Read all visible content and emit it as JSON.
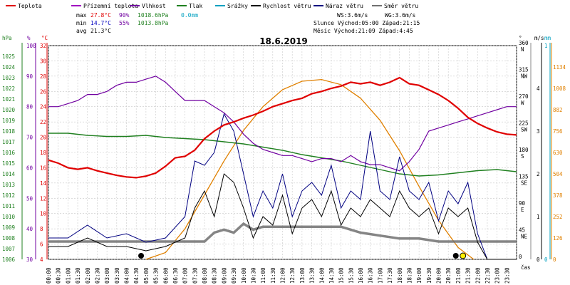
{
  "colors": {
    "temperature": "#e00000",
    "feels_like": "#a000c0",
    "humidity": "#7000a0",
    "pressure": "#208020",
    "rain": "#00a0c0",
    "wind_speed": "#000000",
    "wind_gust": "#000080",
    "wind_dir": "#707070",
    "sun": "#e08000"
  },
  "legend": [
    {
      "key": "temperature",
      "label": "Teplota"
    },
    {
      "key": "feels_like",
      "label": "Přízemní teplota"
    },
    {
      "key": "humidity",
      "label": "Vlhkost"
    },
    {
      "key": "pressure",
      "label": "Tlak"
    },
    {
      "key": "rain",
      "label": "Srážky"
    },
    {
      "key": "wind_speed",
      "label": "Rychlost větru"
    },
    {
      "key": "wind_gust",
      "label": "Náraz větru"
    },
    {
      "key": "wind_dir",
      "label": "Směr větru"
    }
  ],
  "stats": {
    "max_label": "max",
    "max_temp": "27.8°C",
    "max_hum": "90%",
    "max_press": "1018.6hPa",
    "max_rain": "0.0mm",
    "min_label": "min",
    "min_temp": "14.7°C",
    "min_hum": "55%",
    "min_press": "1013.8hPa",
    "avg_label": "avg",
    "avg_temp": "21.3°C",
    "ws": "WS:3.6m/s",
    "wg": "WG:3.6m/s",
    "sun_line": "Slunce Východ:05:00  Západ:21:15",
    "moon_line": "Měsíc  Východ:21:09  Západ:4:45"
  },
  "chart_data": {
    "type": "line",
    "title": "18.6.2019",
    "x_axis_label": "čas",
    "x_ticks": [
      "00:00",
      "00:30",
      "01:00",
      "01:30",
      "02:00",
      "02:30",
      "03:00",
      "03:30",
      "04:00",
      "04:30",
      "05:00",
      "05:30",
      "06:00",
      "06:30",
      "07:00",
      "07:30",
      "08:00",
      "08:30",
      "09:00",
      "09:30",
      "10:00",
      "10:30",
      "11:00",
      "11:30",
      "12:00",
      "12:30",
      "13:00",
      "13:30",
      "14:00",
      "14:30",
      "15:00",
      "15:30",
      "16:00",
      "16:30",
      "17:00",
      "17:30",
      "18:00",
      "18:30",
      "19:00",
      "19:30",
      "20:00",
      "20:30",
      "21:00",
      "21:30",
      "22:00",
      "22:30",
      "23:00",
      "23:30"
    ],
    "axes": {
      "hpa": {
        "label": "hPa",
        "range": [
          1006,
          1026
        ],
        "ticks": [
          1006,
          1007,
          1008,
          1009,
          1010,
          1011,
          1012,
          1013,
          1014,
          1015,
          1016,
          1017,
          1018,
          1019,
          1020,
          1021,
          1022,
          1023,
          1024,
          1025
        ]
      },
      "humidity": {
        "label": "%",
        "range": [
          30,
          100
        ],
        "ticks": [
          30,
          40,
          50,
          60,
          70,
          80,
          90,
          100
        ]
      },
      "temp": {
        "label": "°C",
        "range": [
          4,
          32
        ],
        "ticks": [
          4,
          6,
          8,
          10,
          12,
          14,
          16,
          18,
          20,
          22,
          24,
          26,
          28,
          30,
          32
        ]
      },
      "dir": {
        "label": "°",
        "ticks": [
          {
            "v": 0,
            "l": "0"
          },
          {
            "v": 45,
            "l": "45 NE"
          },
          {
            "v": 90,
            "l": "90 E"
          },
          {
            "v": 135,
            "l": "135 SE"
          },
          {
            "v": 180,
            "l": "180 S"
          },
          {
            "v": 225,
            "l": "225 SW"
          },
          {
            "v": 270,
            "l": "270 W"
          },
          {
            "v": 315,
            "l": "315 NW"
          },
          {
            "v": 360,
            "l": "360 N"
          }
        ]
      },
      "wind": {
        "label": "m/s",
        "range": [
          0,
          5
        ],
        "ticks": [
          0,
          1,
          2,
          3,
          4
        ]
      },
      "rain": {
        "label": "mm",
        "range": [
          0,
          1
        ],
        "ticks": [
          0,
          1
        ]
      },
      "solar": {
        "range": [
          0,
          1260
        ],
        "ticks": [
          0,
          126,
          252,
          378,
          504,
          630,
          756,
          882,
          1008,
          1134
        ]
      }
    },
    "series": {
      "temperature": [
        [
          0,
          17.0
        ],
        [
          0.5,
          16.6
        ],
        [
          1,
          16.0
        ],
        [
          1.5,
          15.8
        ],
        [
          2,
          16.0
        ],
        [
          2.5,
          15.6
        ],
        [
          3,
          15.3
        ],
        [
          3.5,
          15.0
        ],
        [
          4,
          14.8
        ],
        [
          4.5,
          14.7
        ],
        [
          5,
          14.9
        ],
        [
          5.5,
          15.3
        ],
        [
          6,
          16.2
        ],
        [
          6.5,
          17.3
        ],
        [
          7,
          17.5
        ],
        [
          7.5,
          18.3
        ],
        [
          8,
          19.8
        ],
        [
          8.5,
          20.8
        ],
        [
          9,
          21.6
        ],
        [
          9.5,
          22.0
        ],
        [
          10,
          22.5
        ],
        [
          10.5,
          22.9
        ],
        [
          11,
          23.4
        ],
        [
          11.5,
          24.0
        ],
        [
          12,
          24.4
        ],
        [
          12.5,
          24.8
        ],
        [
          13,
          25.1
        ],
        [
          13.5,
          25.7
        ],
        [
          14,
          26.0
        ],
        [
          14.5,
          26.4
        ],
        [
          15,
          26.7
        ],
        [
          15.5,
          27.2
        ],
        [
          16,
          27.0
        ],
        [
          16.5,
          27.2
        ],
        [
          17,
          26.8
        ],
        [
          17.5,
          27.2
        ],
        [
          18,
          27.8
        ],
        [
          18.5,
          27.0
        ],
        [
          19,
          26.8
        ],
        [
          19.5,
          26.2
        ],
        [
          20,
          25.6
        ],
        [
          20.5,
          24.8
        ],
        [
          21,
          23.8
        ],
        [
          21.5,
          22.6
        ],
        [
          22,
          21.8
        ],
        [
          22.5,
          21.2
        ],
        [
          23,
          20.7
        ],
        [
          23.5,
          20.4
        ],
        [
          24,
          20.3
        ]
      ],
      "humidity": [
        [
          0,
          80
        ],
        [
          0.5,
          80
        ],
        [
          1,
          81
        ],
        [
          1.5,
          82
        ],
        [
          2,
          84
        ],
        [
          2.5,
          84
        ],
        [
          3,
          85
        ],
        [
          3.5,
          87
        ],
        [
          4,
          88
        ],
        [
          4.5,
          88
        ],
        [
          5,
          89
        ],
        [
          5.5,
          90
        ],
        [
          6,
          88
        ],
        [
          6.5,
          85
        ],
        [
          7,
          82
        ],
        [
          7.5,
          82
        ],
        [
          8,
          82
        ],
        [
          8.5,
          80
        ],
        [
          9,
          78
        ],
        [
          9.5,
          75
        ],
        [
          10,
          71
        ],
        [
          10.5,
          68
        ],
        [
          11,
          66
        ],
        [
          11.5,
          65
        ],
        [
          12,
          64
        ],
        [
          12.5,
          64
        ],
        [
          13,
          63
        ],
        [
          13.5,
          62
        ],
        [
          14,
          63
        ],
        [
          14.5,
          63
        ],
        [
          15,
          62
        ],
        [
          15.5,
          64
        ],
        [
          16,
          62
        ],
        [
          16.5,
          61
        ],
        [
          17,
          61
        ],
        [
          17.5,
          60
        ],
        [
          18,
          59
        ],
        [
          18.5,
          62
        ],
        [
          19,
          66
        ],
        [
          19.5,
          72
        ],
        [
          20,
          73
        ],
        [
          20.5,
          74
        ],
        [
          21,
          75
        ],
        [
          21.5,
          76
        ],
        [
          22,
          77
        ],
        [
          22.5,
          78
        ],
        [
          23,
          79
        ],
        [
          23.5,
          80
        ],
        [
          24,
          80
        ]
      ],
      "pressure": [
        [
          0,
          1017.8
        ],
        [
          1,
          1017.8
        ],
        [
          2,
          1017.6
        ],
        [
          3,
          1017.5
        ],
        [
          4,
          1017.5
        ],
        [
          5,
          1017.6
        ],
        [
          6,
          1017.4
        ],
        [
          7,
          1017.3
        ],
        [
          8,
          1017.2
        ],
        [
          9,
          1017.0
        ],
        [
          10,
          1016.8
        ],
        [
          11,
          1016.5
        ],
        [
          12,
          1016.2
        ],
        [
          13,
          1015.8
        ],
        [
          14,
          1015.5
        ],
        [
          15,
          1015.2
        ],
        [
          16,
          1014.8
        ],
        [
          17,
          1014.4
        ],
        [
          18,
          1014.0
        ],
        [
          19,
          1013.8
        ],
        [
          20,
          1013.9
        ],
        [
          21,
          1014.1
        ],
        [
          22,
          1014.3
        ],
        [
          23,
          1014.4
        ],
        [
          24,
          1014.2
        ]
      ],
      "solar": [
        [
          5.0,
          0
        ],
        [
          6,
          40
        ],
        [
          7,
          180
        ],
        [
          8,
          380
        ],
        [
          9,
          580
        ],
        [
          10,
          760
        ],
        [
          11,
          900
        ],
        [
          12,
          1000
        ],
        [
          13,
          1050
        ],
        [
          14,
          1060
        ],
        [
          15,
          1030
        ],
        [
          16,
          950
        ],
        [
          17,
          820
        ],
        [
          18,
          640
        ],
        [
          19,
          430
        ],
        [
          20,
          230
        ],
        [
          21,
          70
        ],
        [
          21.8,
          0
        ]
      ],
      "wind_speed": [
        [
          0,
          0.3
        ],
        [
          1,
          0.3
        ],
        [
          2,
          0.5
        ],
        [
          3,
          0.3
        ],
        [
          4,
          0.3
        ],
        [
          5,
          0.2
        ],
        [
          6,
          0.3
        ],
        [
          7,
          0.5
        ],
        [
          7.5,
          1.2
        ],
        [
          8,
          1.6
        ],
        [
          8.5,
          1.0
        ],
        [
          9,
          2.0
        ],
        [
          9.5,
          1.8
        ],
        [
          10,
          1.2
        ],
        [
          10.5,
          0.5
        ],
        [
          11,
          1.0
        ],
        [
          11.5,
          0.8
        ],
        [
          12,
          1.5
        ],
        [
          12.5,
          0.6
        ],
        [
          13,
          1.2
        ],
        [
          13.5,
          1.4
        ],
        [
          14,
          1.0
        ],
        [
          14.5,
          1.6
        ],
        [
          15,
          0.8
        ],
        [
          15.5,
          1.2
        ],
        [
          16,
          1.0
        ],
        [
          16.5,
          1.4
        ],
        [
          17,
          1.2
        ],
        [
          17.5,
          1.0
        ],
        [
          18,
          1.6
        ],
        [
          18.5,
          1.2
        ],
        [
          19,
          1.0
        ],
        [
          19.5,
          1.2
        ],
        [
          20,
          0.6
        ],
        [
          20.5,
          1.2
        ],
        [
          21,
          1.0
        ],
        [
          21.5,
          1.2
        ],
        [
          22,
          0.4
        ],
        [
          22.5,
          0.0
        ],
        [
          24,
          0.0
        ]
      ],
      "wind_gust": [
        [
          0,
          0.5
        ],
        [
          1,
          0.5
        ],
        [
          2,
          0.8
        ],
        [
          3,
          0.5
        ],
        [
          4,
          0.6
        ],
        [
          5,
          0.4
        ],
        [
          6,
          0.5
        ],
        [
          7,
          1.0
        ],
        [
          7.5,
          2.3
        ],
        [
          8,
          2.2
        ],
        [
          8.5,
          2.5
        ],
        [
          9,
          3.4
        ],
        [
          9.5,
          3.0
        ],
        [
          10,
          2.0
        ],
        [
          10.5,
          1.0
        ],
        [
          11,
          1.6
        ],
        [
          11.5,
          1.2
        ],
        [
          12,
          2.0
        ],
        [
          12.5,
          1.0
        ],
        [
          13,
          1.6
        ],
        [
          13.5,
          1.8
        ],
        [
          14,
          1.5
        ],
        [
          14.5,
          2.2
        ],
        [
          15,
          1.2
        ],
        [
          15.5,
          1.6
        ],
        [
          16,
          1.4
        ],
        [
          16.5,
          3.0
        ],
        [
          17,
          1.6
        ],
        [
          17.5,
          1.4
        ],
        [
          18,
          2.4
        ],
        [
          18.5,
          1.6
        ],
        [
          19,
          1.4
        ],
        [
          19.5,
          1.8
        ],
        [
          20,
          0.9
        ],
        [
          20.5,
          1.6
        ],
        [
          21,
          1.3
        ],
        [
          21.5,
          1.8
        ],
        [
          22,
          0.6
        ],
        [
          22.5,
          0.0
        ],
        [
          24,
          0.0
        ]
      ],
      "wind_dir": [
        [
          0,
          30
        ],
        [
          1,
          30
        ],
        [
          2,
          30
        ],
        [
          3,
          30
        ],
        [
          4,
          30
        ],
        [
          5,
          30
        ],
        [
          6,
          30
        ],
        [
          7,
          30
        ],
        [
          7.5,
          30
        ],
        [
          8,
          30
        ],
        [
          8.5,
          45
        ],
        [
          9,
          50
        ],
        [
          9.5,
          45
        ],
        [
          10,
          60
        ],
        [
          10.5,
          50
        ],
        [
          11,
          55
        ],
        [
          12,
          55
        ],
        [
          13,
          55
        ],
        [
          14,
          55
        ],
        [
          15,
          55
        ],
        [
          16,
          45
        ],
        [
          17,
          40
        ],
        [
          18,
          35
        ],
        [
          19,
          35
        ],
        [
          20,
          30
        ],
        [
          21,
          30
        ],
        [
          22,
          30
        ],
        [
          23,
          30
        ],
        [
          24,
          30
        ]
      ]
    },
    "moon_marker": {
      "time": 4.75
    },
    "sun_marker": {
      "time": 21.25
    }
  }
}
